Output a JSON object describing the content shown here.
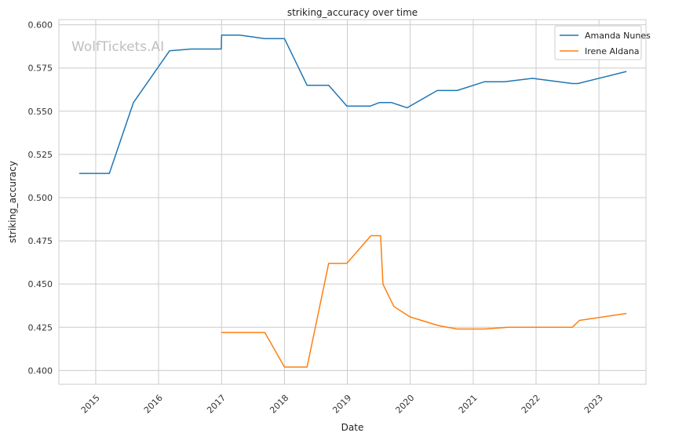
{
  "watermark": "WolfTickets.AI",
  "chart_data": {
    "type": "line",
    "title": "striking_accuracy over time",
    "xlabel": "Date",
    "ylabel": "striking_accuracy",
    "xlim": [
      "2014-06-01",
      "2023-10-01"
    ],
    "ylim": [
      0.392,
      0.603
    ],
    "x_ticks": [
      "2015",
      "2016",
      "2017",
      "2018",
      "2019",
      "2020",
      "2021",
      "2022",
      "2023"
    ],
    "y_ticks": [
      "0.400",
      "0.425",
      "0.450",
      "0.475",
      "0.500",
      "0.525",
      "0.550",
      "0.575",
      "0.600"
    ],
    "grid": true,
    "legend_position": "top-right",
    "series": [
      {
        "name": "Amanda Nunes",
        "color": "#1f77b4",
        "points": [
          [
            "2014-09-27",
            0.514
          ],
          [
            "2015-03-21",
            0.514
          ],
          [
            "2015-08-08",
            0.555
          ],
          [
            "2016-03-05",
            0.585
          ],
          [
            "2016-07-09",
            0.586
          ],
          [
            "2016-12-30",
            0.586
          ],
          [
            "2017-01-01",
            0.594
          ],
          [
            "2017-04-15",
            0.594
          ],
          [
            "2017-09-09",
            0.592
          ],
          [
            "2018-01-01",
            0.592
          ],
          [
            "2018-05-12",
            0.565
          ],
          [
            "2018-09-15",
            0.565
          ],
          [
            "2018-12-29",
            0.553
          ],
          [
            "2019-05-15",
            0.553
          ],
          [
            "2019-07-06",
            0.555
          ],
          [
            "2019-09-15",
            0.555
          ],
          [
            "2019-12-14",
            0.552
          ],
          [
            "2020-06-06",
            0.562
          ],
          [
            "2020-09-30",
            0.562
          ],
          [
            "2021-03-06",
            0.567
          ],
          [
            "2021-07-01",
            0.567
          ],
          [
            "2021-12-11",
            0.569
          ],
          [
            "2022-07-30",
            0.566
          ],
          [
            "2022-09-01",
            0.566
          ],
          [
            "2023-06-10",
            0.573
          ]
        ]
      },
      {
        "name": "Irene Aldana",
        "color": "#ff7f0e",
        "points": [
          [
            "2016-12-30",
            0.422
          ],
          [
            "2017-09-09",
            0.422
          ],
          [
            "2018-01-01",
            0.402
          ],
          [
            "2018-05-12",
            0.402
          ],
          [
            "2018-09-15",
            0.462
          ],
          [
            "2018-12-29",
            0.462
          ],
          [
            "2019-05-18",
            0.478
          ],
          [
            "2019-07-13",
            0.478
          ],
          [
            "2019-07-27",
            0.45
          ],
          [
            "2019-09-28",
            0.437
          ],
          [
            "2020-01-01",
            0.431
          ],
          [
            "2020-06-13",
            0.426
          ],
          [
            "2020-09-30",
            0.424
          ],
          [
            "2021-03-06",
            0.424
          ],
          [
            "2021-07-24",
            0.425
          ],
          [
            "2022-01-01",
            0.425
          ],
          [
            "2022-07-30",
            0.425
          ],
          [
            "2022-09-10",
            0.429
          ],
          [
            "2023-06-10",
            0.433
          ]
        ]
      }
    ]
  }
}
